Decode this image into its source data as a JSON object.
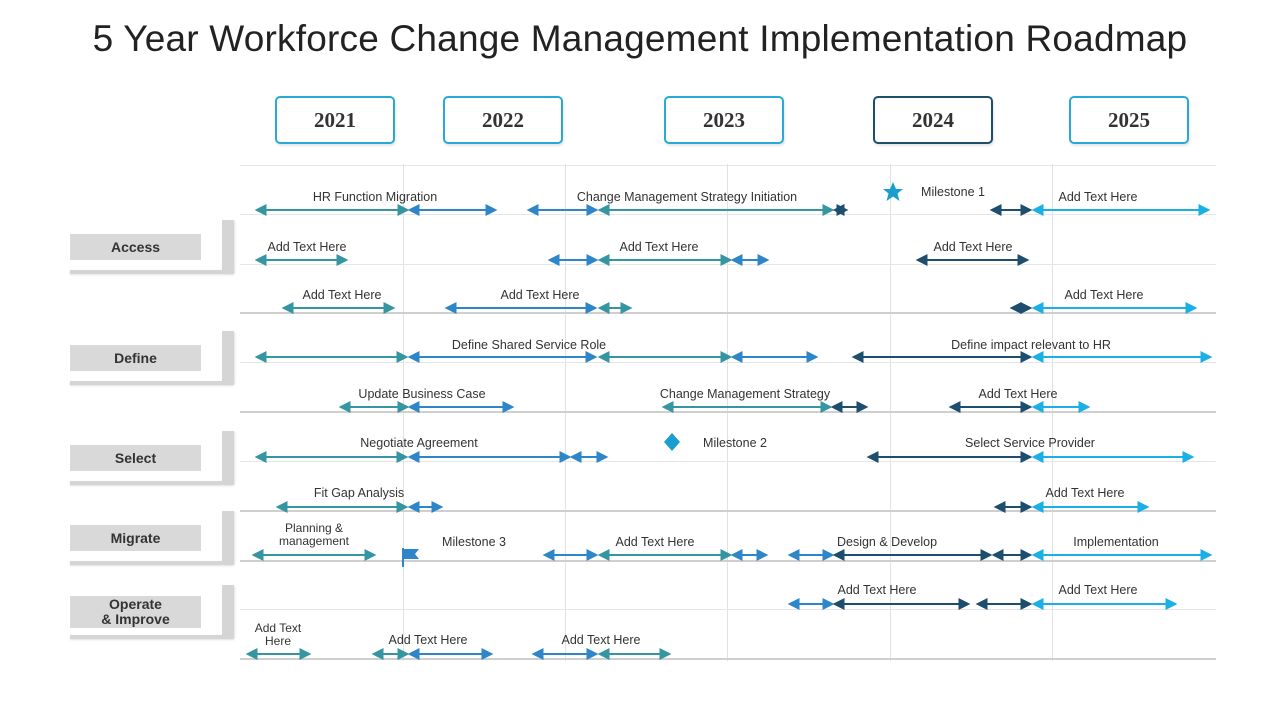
{
  "title": "5 Year Workforce Change Management Implementation Roadmap",
  "years": [
    "2021",
    "2022",
    "2023",
    "2024",
    "2025"
  ],
  "categories": [
    "Access",
    "Define",
    "Select",
    "Migrate",
    "Operate\n& Improve"
  ],
  "colors": {
    "teal": "#3596a2",
    "mid_blue": "#2e86c8",
    "navy": "#1d4e6e",
    "cyan": "#1ab0e6",
    "milestone": "#1a9ecf"
  },
  "labels": {
    "hr_function_migration": "HR Function Migration",
    "change_mgmt_strategy_initiation": "Change  Management  Strategy Initiation",
    "milestone_1": "Milestone 1",
    "add_text": "Add Text Here",
    "define_shared_service_role": "Define  Shared Service Role",
    "define_impact_relevant": "Define  impact relevant  to HR",
    "update_business_case": "Update Business Case",
    "change_mgmt_strategy": "Change Management  Strategy",
    "negotiate_agreement": "Negotiate Agreement",
    "milestone_2": "Milestone 2",
    "select_service_provider": "Select Service  Provider",
    "fit_gap_analysis": "Fit Gap Analysis",
    "planning_management": "Planning &\nmanagement",
    "milestone_3": "Milestone 3",
    "design_develop": "Design  & Develop",
    "implementation": "Implementation",
    "add_text_two_line": "Add Text\nHere"
  }
}
